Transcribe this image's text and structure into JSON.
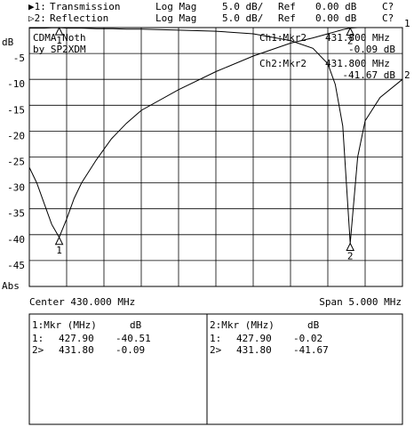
{
  "chart_data": {
    "type": "line",
    "channels": [
      {
        "prefix": "▶1:",
        "format": "Log Mag",
        "scale": "5.0 dB/",
        "ref_label": "Ref",
        "ref": "0.00 dB",
        "flag": "C?"
      },
      {
        "prefix": "▷2:",
        "format": "Log Mag",
        "scale": "5.0 dB/",
        "ref_label": "Ref",
        "ref": "0.00 dB",
        "flag": "C?"
      }
    ],
    "y_label": "dB",
    "y_bottom_label": "Abs",
    "annotations": [
      "CDMA Noth",
      "by SP2XDM"
    ],
    "marker_readouts": [
      {
        "channel": "Ch1:Mkr2",
        "freq": "431.800 MHz",
        "value": "-0.09 dB"
      },
      {
        "channel": "Ch2:Mkr2",
        "freq": "431.800 MHz",
        "value": "-41.67 dB"
      }
    ],
    "center": "Center 430.000 MHz",
    "span": "Span 5.000 MHz",
    "xlim": [
      427.5,
      432.5
    ],
    "ylim": [
      -50,
      0
    ],
    "yticks": [
      -5,
      -10,
      -15,
      -20,
      -25,
      -30,
      -35,
      -40,
      -45
    ],
    "grid": true,
    "x": [
      427.5,
      427.6,
      427.7,
      427.8,
      427.9,
      428.0,
      428.1,
      428.2,
      428.4,
      428.6,
      428.8,
      429.0,
      429.5,
      430.0,
      430.5,
      431.0,
      431.3,
      431.5,
      431.6,
      431.7,
      431.8,
      431.9,
      432.0,
      432.2,
      432.5
    ],
    "series": [
      {
        "name": "Transmission",
        "color": "#000000",
        "end_label": "1",
        "values": [
          -27,
          -30,
          -34,
          -38,
          -40.51,
          -37,
          -33,
          -30,
          -25.5,
          -21.5,
          -18.5,
          -16,
          -12,
          -8.5,
          -5.5,
          -3,
          -2,
          -1.2,
          -0.8,
          -0.4,
          -0.09,
          0,
          0,
          0,
          0
        ]
      },
      {
        "name": "Reflection",
        "color": "#000000",
        "end_label": "2",
        "values": [
          -0.1,
          -0.1,
          -0.1,
          -0.05,
          -0.02,
          -0.1,
          -0.1,
          -0.1,
          -0.2,
          -0.2,
          -0.3,
          -0.3,
          -0.5,
          -0.7,
          -1.2,
          -2.5,
          -4,
          -7,
          -11,
          -19,
          -41.67,
          -25,
          -18,
          -13.5,
          -10
        ]
      }
    ],
    "markers": [
      {
        "label": "1",
        "x": 427.9
      },
      {
        "label": "2",
        "x": 431.8
      }
    ]
  },
  "marker_tables": [
    {
      "header": "1:Mkr (MHz)",
      "unit": "dB",
      "rows": [
        [
          "1:",
          "427.90",
          "-40.51"
        ],
        [
          "2>",
          "431.80",
          "-0.09"
        ]
      ]
    },
    {
      "header": "2:Mkr (MHz)",
      "unit": "dB",
      "rows": [
        [
          "1:",
          "427.90",
          "-0.02"
        ],
        [
          "2>",
          "431.80",
          "-41.67"
        ]
      ]
    }
  ]
}
